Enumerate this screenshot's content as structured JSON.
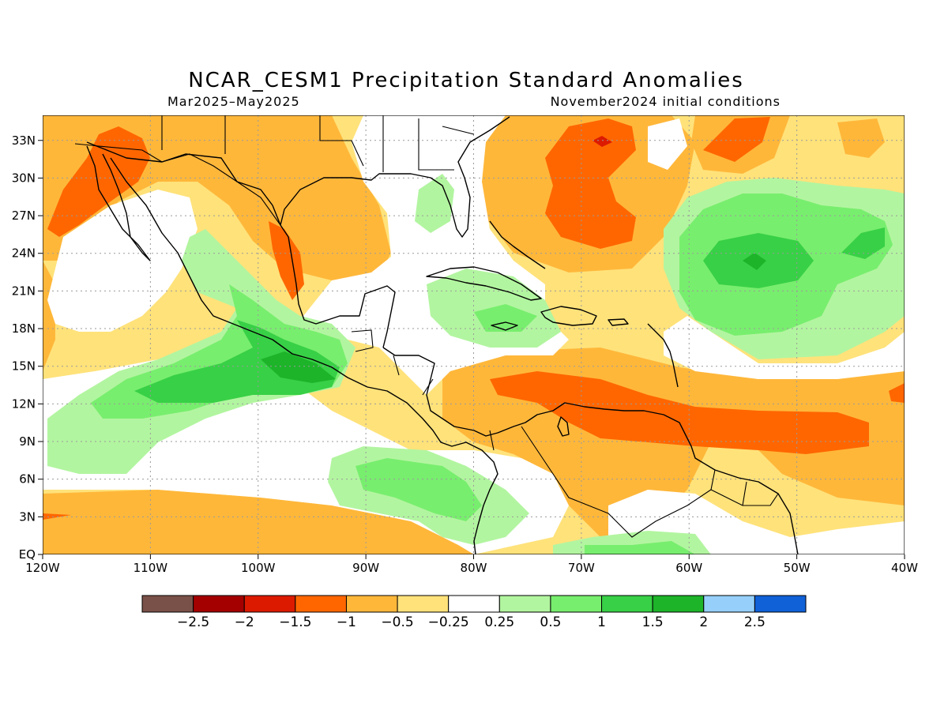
{
  "title": "NCAR_CESM1 Precipitation Standard Anomalies",
  "season": "Mar2025–May2025",
  "init": "November2024 initial conditions",
  "lat_ticks": [
    "33N",
    "30N",
    "27N",
    "24N",
    "21N",
    "18N",
    "15N",
    "12N",
    "9N",
    "6N",
    "3N",
    "EQ"
  ],
  "lon_ticks": [
    "120W",
    "110W",
    "100W",
    "90W",
    "80W",
    "70W",
    "60W",
    "50W",
    "40W"
  ],
  "map_extent": {
    "lon": [
      -120,
      -40
    ],
    "lat": [
      0,
      35
    ]
  },
  "colorbar": {
    "labels": [
      "−2.5",
      "−2",
      "−1.5",
      "−1",
      "−0.5",
      "−0.25",
      "0.25",
      "0.5",
      "1",
      "1.5",
      "2",
      "2.5"
    ],
    "colors": [
      "#7a5148",
      "#a50000",
      "#dc1a00",
      "#ff6600",
      "#ffb73a",
      "#ffe27a",
      "#ffffff",
      "#b2f5a0",
      "#78ee6e",
      "#38d046",
      "#1db42a",
      "#96d0fa",
      "#1060d8"
    ]
  },
  "colors": {
    "brown": "#7a5148",
    "darkred": "#a50000",
    "red": "#dc1a00",
    "orange": "#ff6600",
    "lightorange": "#ffb73a",
    "yellow": "#ffe27a",
    "white": "#ffffff",
    "palegreen": "#b2f5a0",
    "lightgreen": "#78ee6e",
    "green": "#38d046",
    "darkgreen": "#1db42a"
  }
}
